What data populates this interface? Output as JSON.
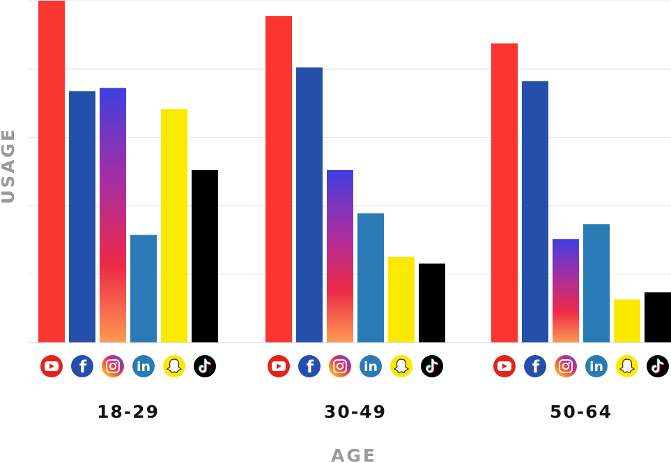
{
  "chart_data": {
    "type": "bar",
    "xlabel": "AGE",
    "ylabel": "USAGE",
    "categories": [
      "18-29",
      "30-49",
      "50-64"
    ],
    "ylim": [
      0,
      100
    ],
    "grid": true,
    "legend": "icons-below-bars",
    "series": [
      {
        "icon": "youtube-icon",
        "color": "#fb3630",
        "values": [
          100,
          95.5,
          87.5
        ]
      },
      {
        "icon": "facebook-icon",
        "color": "#2450ac",
        "values": [
          73.5,
          80.5,
          76.5
        ]
      },
      {
        "icon": "instagram-icon",
        "color": "#8a3ab9",
        "values": [
          74.5,
          50.5,
          30.3
        ]
      },
      {
        "icon": "linkedin-icon",
        "color": "#2a7ab5",
        "values": [
          31.5,
          37.8,
          34.6
        ]
      },
      {
        "icon": "snapchat-icon",
        "color": "#fbe900",
        "values": [
          68.3,
          25.1,
          12.6
        ]
      },
      {
        "icon": "tiktok-icon",
        "color": "#000000",
        "values": [
          50.5,
          23.1,
          14.7
        ]
      }
    ]
  }
}
